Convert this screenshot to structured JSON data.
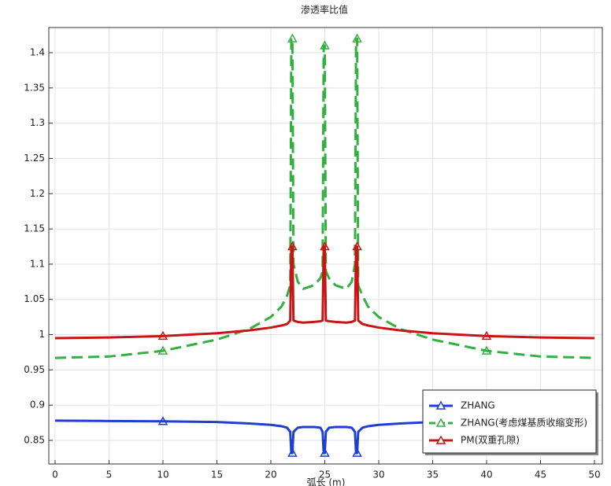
{
  "chart_data": {
    "type": "line",
    "title": "渗透率比值",
    "xlabel": "弧长 (m)",
    "x": [
      0,
      5,
      10,
      15,
      18,
      20,
      21,
      21.5,
      21.8,
      21.9,
      22,
      22.1,
      22.5,
      23,
      24,
      24.6,
      24.8,
      24.9,
      25,
      25.1,
      25.4,
      26,
      27,
      27.5,
      27.8,
      27.9,
      28,
      28.1,
      28.5,
      29,
      30,
      32,
      35,
      40,
      45,
      50
    ],
    "series": [
      {
        "name": "ZHANG",
        "color": "#1f3fcf",
        "dash": false,
        "values": [
          0.878,
          0.8775,
          0.877,
          0.876,
          0.874,
          0.872,
          0.87,
          0.868,
          0.862,
          0.832,
          0.832,
          0.862,
          0.868,
          0.869,
          0.869,
          0.868,
          0.862,
          0.832,
          0.832,
          0.862,
          0.868,
          0.869,
          0.869,
          0.868,
          0.862,
          0.832,
          0.832,
          0.862,
          0.868,
          0.87,
          0.872,
          0.874,
          0.876,
          0.877,
          0.8775,
          0.878
        ]
      },
      {
        "name": "ZHANG(考虑煤基质收缩变形)",
        "color": "#33b040",
        "dash": true,
        "values": [
          0.967,
          0.969,
          0.977,
          0.993,
          1.008,
          1.025,
          1.04,
          1.055,
          1.07,
          1.42,
          1.42,
          1.1,
          1.075,
          1.065,
          1.07,
          1.08,
          1.09,
          1.41,
          1.41,
          1.09,
          1.08,
          1.07,
          1.065,
          1.075,
          1.1,
          1.42,
          1.42,
          1.07,
          1.055,
          1.04,
          1.025,
          1.008,
          0.993,
          0.977,
          0.969,
          0.967
        ]
      },
      {
        "name": "PM(双重孔隙)",
        "color": "#c81414",
        "dash": false,
        "values": [
          0.995,
          0.996,
          0.998,
          1.002,
          1.006,
          1.01,
          1.013,
          1.015,
          1.02,
          1.125,
          1.125,
          1.02,
          1.018,
          1.017,
          1.018,
          1.019,
          1.02,
          1.125,
          1.125,
          1.02,
          1.019,
          1.018,
          1.017,
          1.018,
          1.02,
          1.125,
          1.125,
          1.02,
          1.015,
          1.013,
          1.01,
          1.006,
          1.002,
          0.998,
          0.996,
          0.995
        ]
      }
    ],
    "xlim": [
      -0.58,
      50.73
    ],
    "ylim": [
      0.8165,
      1.4357
    ],
    "xticks": [
      0,
      5,
      10,
      15,
      20,
      25,
      30,
      35,
      40,
      45,
      50
    ],
    "yticks": [
      0.85,
      0.9,
      0.95,
      1,
      1.05,
      1.1,
      1.15,
      1.2,
      1.25,
      1.3,
      1.35,
      1.4
    ],
    "grid": true,
    "legend": "lower right"
  }
}
